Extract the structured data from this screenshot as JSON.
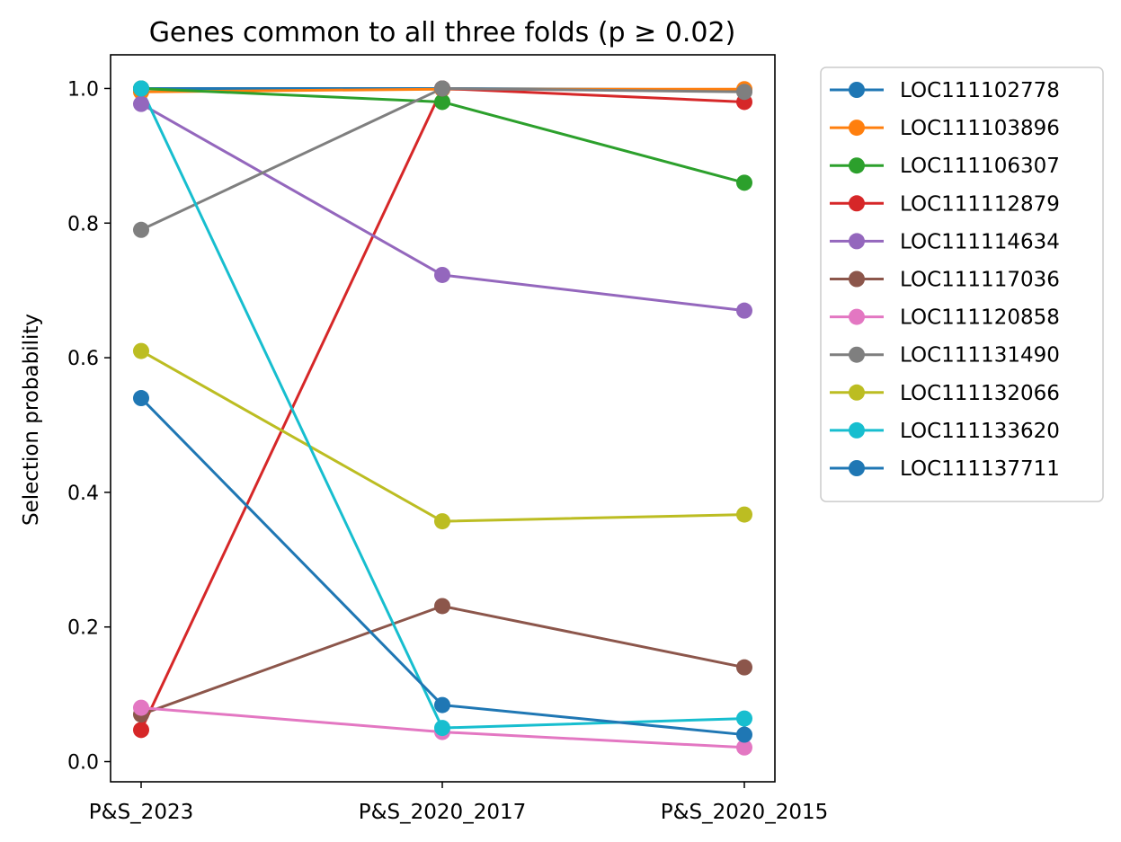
{
  "chart_data": {
    "type": "line",
    "title": "Genes common to all three folds (p ≥ 0.02)",
    "xlabel": "",
    "ylabel": "Selection probability",
    "categories": [
      "P&S_2023",
      "P&S_2020_2017",
      "P&S_2020_2015"
    ],
    "ylim": [
      -0.03,
      1.05
    ],
    "yticks": [
      0.0,
      0.2,
      0.4,
      0.6,
      0.8,
      1.0
    ],
    "ytick_labels": [
      "0.0",
      "0.2",
      "0.4",
      "0.6",
      "0.8",
      "1.0"
    ],
    "grid": false,
    "legend_position": "outside-right-top",
    "series": [
      {
        "name": "LOC111102778",
        "color": "#1f77b4",
        "values": [
          1.0,
          1.0,
          0.998
        ]
      },
      {
        "name": "LOC111103896",
        "color": "#ff7f0e",
        "values": [
          0.995,
          0.999,
          0.999
        ]
      },
      {
        "name": "LOC111106307",
        "color": "#2ca02c",
        "values": [
          1.0,
          0.98,
          0.86
        ]
      },
      {
        "name": "LOC111112879",
        "color": "#d62728",
        "values": [
          0.047,
          1.0,
          0.98
        ]
      },
      {
        "name": "LOC111114634",
        "color": "#9467bd",
        "values": [
          0.977,
          0.723,
          0.67
        ]
      },
      {
        "name": "LOC111117036",
        "color": "#8c564b",
        "values": [
          0.07,
          0.231,
          0.14
        ]
      },
      {
        "name": "LOC111120858",
        "color": "#e377c2",
        "values": [
          0.08,
          0.044,
          0.021
        ]
      },
      {
        "name": "LOC111131490",
        "color": "#7f7f7f",
        "values": [
          0.79,
          1.0,
          0.995
        ]
      },
      {
        "name": "LOC111132066",
        "color": "#bcbd22",
        "values": [
          0.61,
          0.357,
          0.367
        ]
      },
      {
        "name": "LOC111133620",
        "color": "#17becf",
        "values": [
          1.0,
          0.05,
          0.064
        ]
      },
      {
        "name": "LOC111137711",
        "color": "#1f77b4",
        "values": [
          0.54,
          0.084,
          0.04
        ]
      }
    ]
  }
}
